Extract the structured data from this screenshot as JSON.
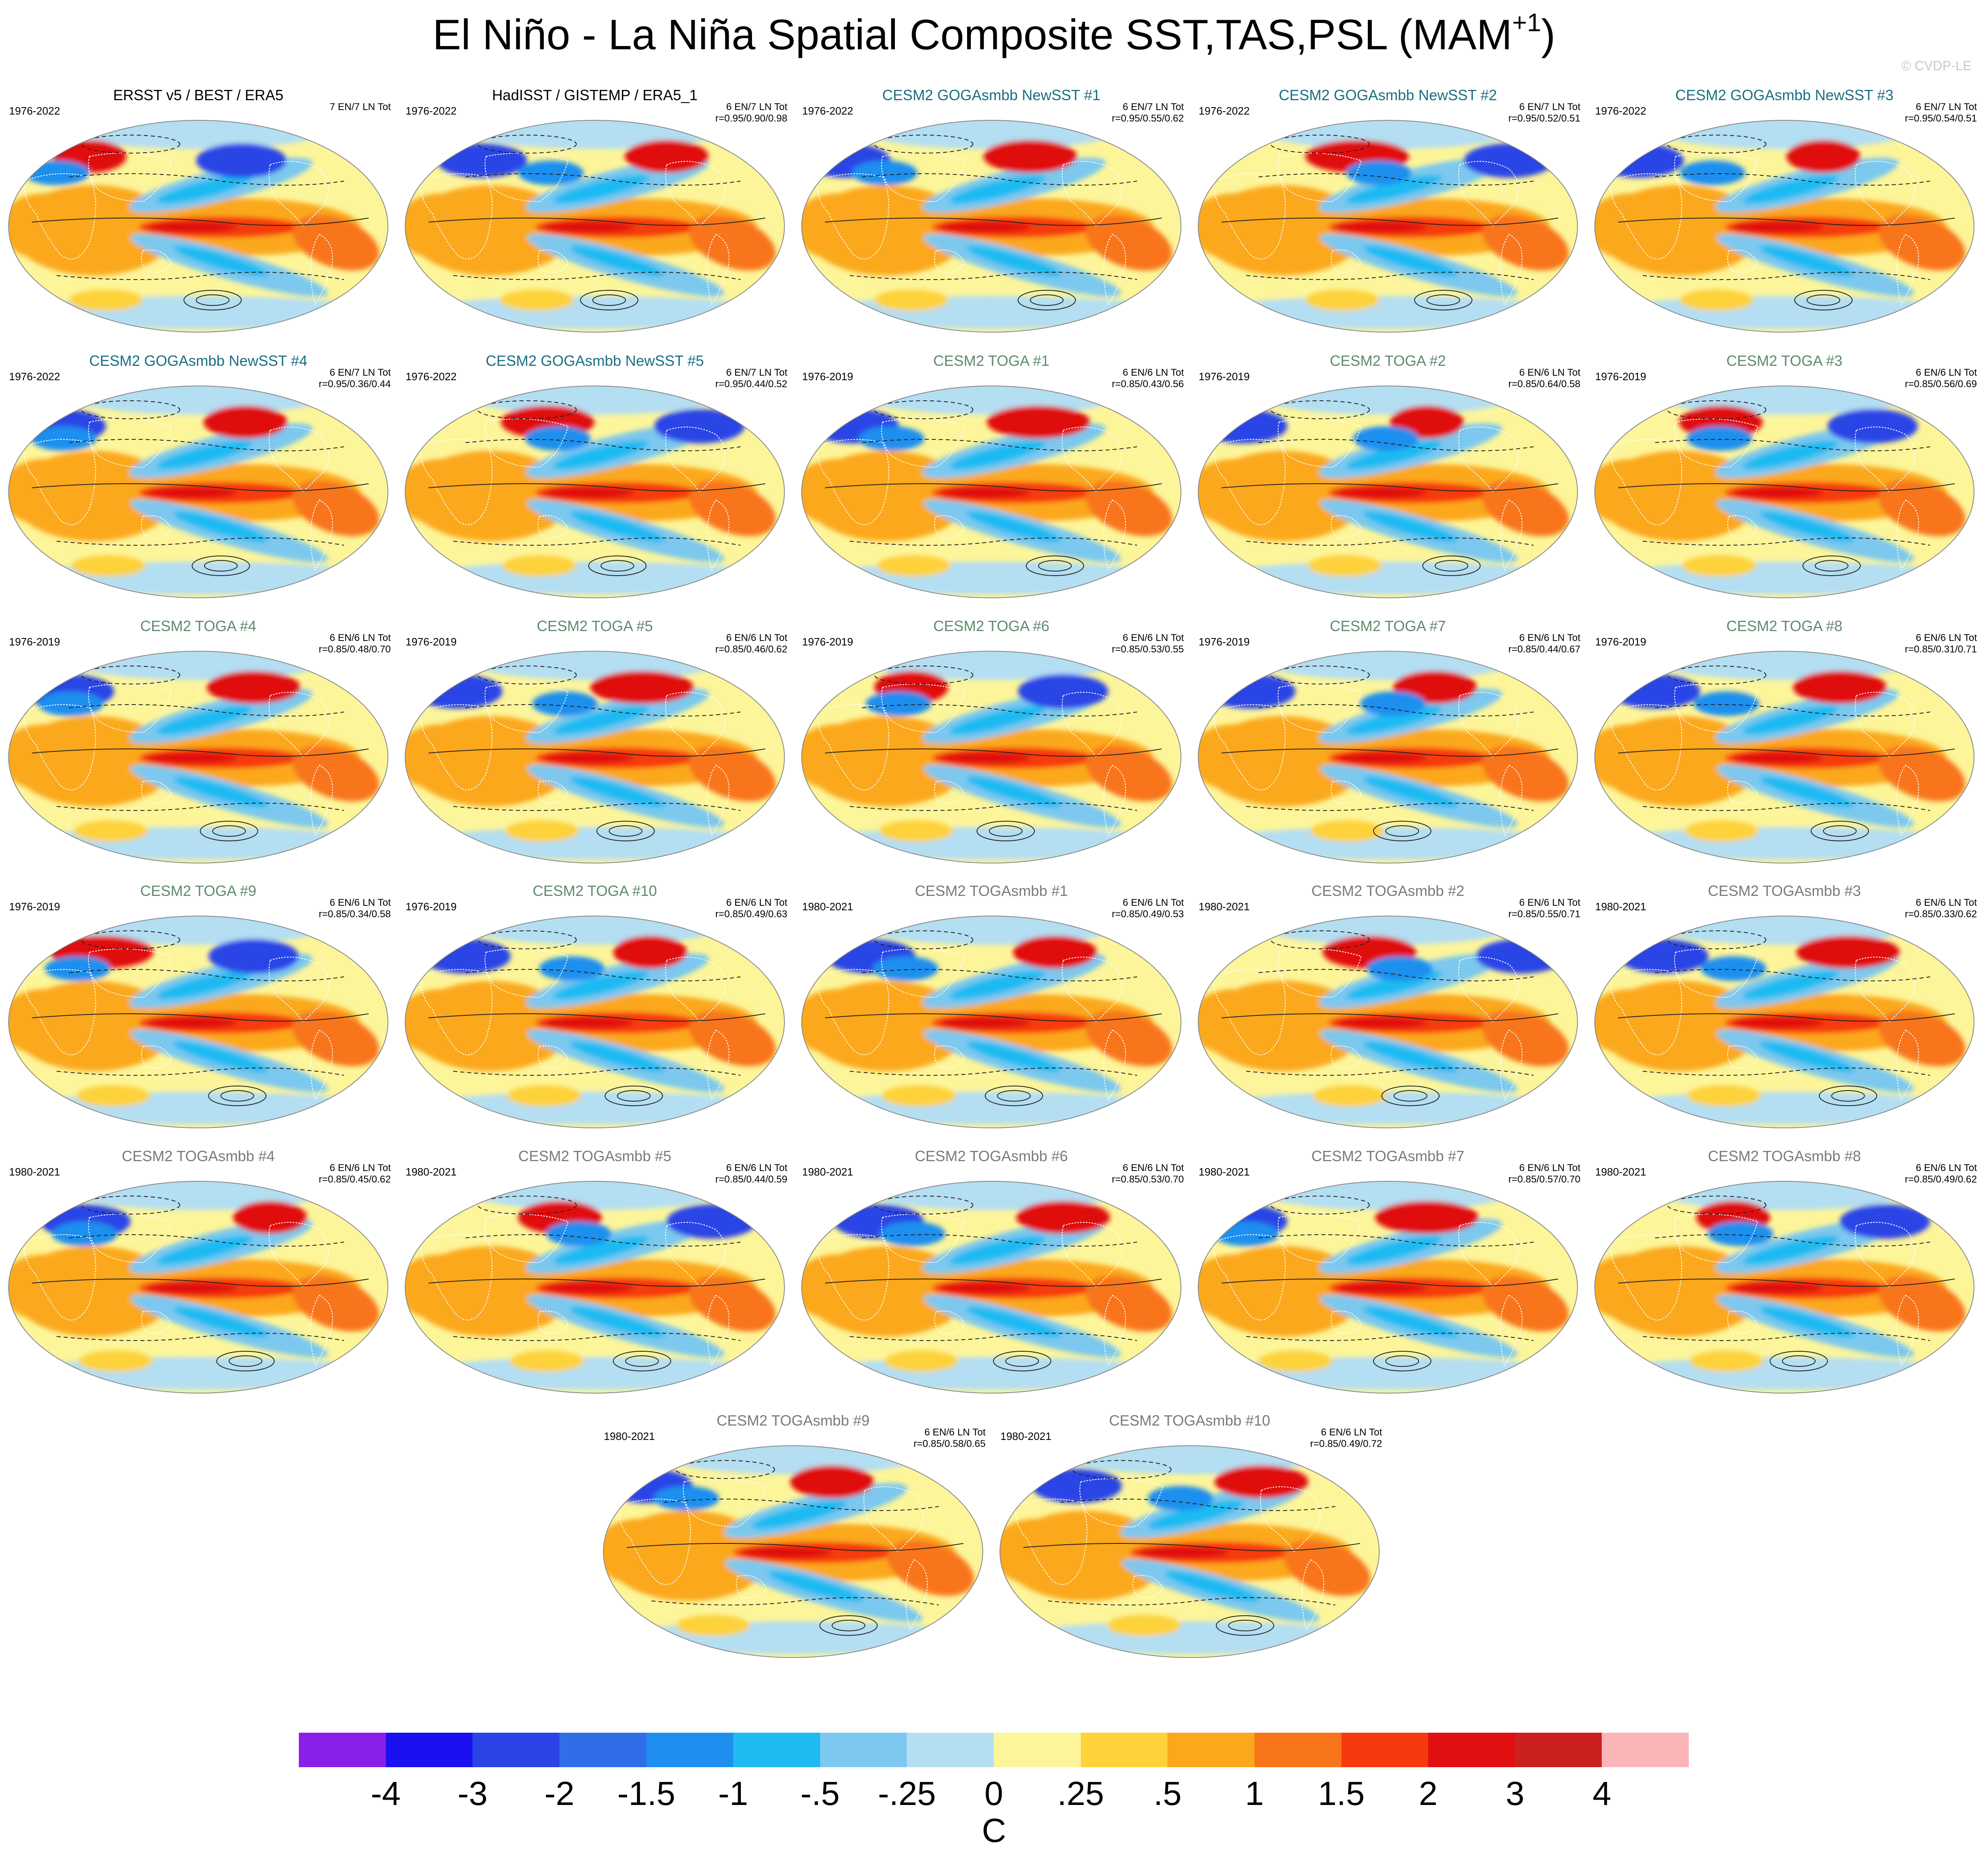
{
  "title": {
    "main": "El Niño - La Niña Spatial Composite SST,TAS,PSL (MAM",
    "superscript": "+1",
    "close": ")"
  },
  "credit": "© CVDP-LE",
  "colors": {
    "obs_title": "#000000",
    "goga_title": "#1a6e82",
    "toga_title": "#5e8a6e",
    "togasmbb_title": "#7a7a7a"
  },
  "panels": [
    {
      "title": "ERSST v5 / BEST / ERA5",
      "group": "obs",
      "years": "1976-2022",
      "count": "7 EN/7 LN Tot",
      "corr": ""
    },
    {
      "title": "HadISST / GISTEMP / ERA5_1",
      "group": "obs",
      "years": "1976-2022",
      "count": "6 EN/7 LN Tot",
      "corr": "r=0.95/0.90/0.98"
    },
    {
      "title": "CESM2 GOGAsmbb NewSST #1",
      "group": "goga",
      "years": "1976-2022",
      "count": "6 EN/7 LN Tot",
      "corr": "r=0.95/0.55/0.62"
    },
    {
      "title": "CESM2 GOGAsmbb NewSST #2",
      "group": "goga",
      "years": "1976-2022",
      "count": "6 EN/7 LN Tot",
      "corr": "r=0.95/0.52/0.51"
    },
    {
      "title": "CESM2 GOGAsmbb NewSST #3",
      "group": "goga",
      "years": "1976-2022",
      "count": "6 EN/7 LN Tot",
      "corr": "r=0.95/0.54/0.51"
    },
    {
      "title": "CESM2 GOGAsmbb NewSST #4",
      "group": "goga",
      "years": "1976-2022",
      "count": "6 EN/7 LN Tot",
      "corr": "r=0.95/0.36/0.44"
    },
    {
      "title": "CESM2 GOGAsmbb NewSST #5",
      "group": "goga",
      "years": "1976-2022",
      "count": "6 EN/7 LN Tot",
      "corr": "r=0.95/0.44/0.52"
    },
    {
      "title": "CESM2 TOGA #1",
      "group": "toga",
      "years": "1976-2019",
      "count": "6 EN/6 LN Tot",
      "corr": "r=0.85/0.43/0.56"
    },
    {
      "title": "CESM2 TOGA #2",
      "group": "toga",
      "years": "1976-2019",
      "count": "6 EN/6 LN Tot",
      "corr": "r=0.85/0.64/0.58"
    },
    {
      "title": "CESM2 TOGA #3",
      "group": "toga",
      "years": "1976-2019",
      "count": "6 EN/6 LN Tot",
      "corr": "r=0.85/0.56/0.69"
    },
    {
      "title": "CESM2 TOGA #4",
      "group": "toga",
      "years": "1976-2019",
      "count": "6 EN/6 LN Tot",
      "corr": "r=0.85/0.48/0.70"
    },
    {
      "title": "CESM2 TOGA #5",
      "group": "toga",
      "years": "1976-2019",
      "count": "6 EN/6 LN Tot",
      "corr": "r=0.85/0.46/0.62"
    },
    {
      "title": "CESM2 TOGA #6",
      "group": "toga",
      "years": "1976-2019",
      "count": "6 EN/6 LN Tot",
      "corr": "r=0.85/0.53/0.55"
    },
    {
      "title": "CESM2 TOGA #7",
      "group": "toga",
      "years": "1976-2019",
      "count": "6 EN/6 LN Tot",
      "corr": "r=0.85/0.44/0.67"
    },
    {
      "title": "CESM2 TOGA #8",
      "group": "toga",
      "years": "1976-2019",
      "count": "6 EN/6 LN Tot",
      "corr": "r=0.85/0.31/0.71"
    },
    {
      "title": "CESM2 TOGA #9",
      "group": "toga",
      "years": "1976-2019",
      "count": "6 EN/6 LN Tot",
      "corr": "r=0.85/0.34/0.58"
    },
    {
      "title": "CESM2 TOGA #10",
      "group": "toga",
      "years": "1976-2019",
      "count": "6 EN/6 LN Tot",
      "corr": "r=0.85/0.49/0.63"
    },
    {
      "title": "CESM2 TOGAsmbb #1",
      "group": "togasmbb",
      "years": "1980-2021",
      "count": "6 EN/6 LN Tot",
      "corr": "r=0.85/0.49/0.53"
    },
    {
      "title": "CESM2 TOGAsmbb #2",
      "group": "togasmbb",
      "years": "1980-2021",
      "count": "6 EN/6 LN Tot",
      "corr": "r=0.85/0.55/0.71"
    },
    {
      "title": "CESM2 TOGAsmbb #3",
      "group": "togasmbb",
      "years": "1980-2021",
      "count": "6 EN/6 LN Tot",
      "corr": "r=0.85/0.33/0.62"
    },
    {
      "title": "CESM2 TOGAsmbb #4",
      "group": "togasmbb",
      "years": "1980-2021",
      "count": "6 EN/6 LN Tot",
      "corr": "r=0.85/0.45/0.62"
    },
    {
      "title": "CESM2 TOGAsmbb #5",
      "group": "togasmbb",
      "years": "1980-2021",
      "count": "6 EN/6 LN Tot",
      "corr": "r=0.85/0.44/0.59"
    },
    {
      "title": "CESM2 TOGAsmbb #6",
      "group": "togasmbb",
      "years": "1980-2021",
      "count": "6 EN/6 LN Tot",
      "corr": "r=0.85/0.53/0.70"
    },
    {
      "title": "CESM2 TOGAsmbb #7",
      "group": "togasmbb",
      "years": "1980-2021",
      "count": "6 EN/6 LN Tot",
      "corr": "r=0.85/0.57/0.70"
    },
    {
      "title": "CESM2 TOGAsmbb #8",
      "group": "togasmbb",
      "years": "1980-2021",
      "count": "6 EN/6 LN Tot",
      "corr": "r=0.85/0.49/0.62"
    },
    {
      "title": "CESM2 TOGAsmbb #9",
      "group": "togasmbb",
      "years": "1980-2021",
      "count": "6 EN/6 LN Tot",
      "corr": "r=0.85/0.58/0.65"
    },
    {
      "title": "CESM2 TOGAsmbb #10",
      "group": "togasmbb",
      "years": "1980-2021",
      "count": "6 EN/6 LN Tot",
      "corr": "r=0.85/0.49/0.72"
    }
  ],
  "colorbar": {
    "colors": [
      "#8a1fe8",
      "#1a10f0",
      "#2a44e6",
      "#2f6ee8",
      "#1f8fef",
      "#1fbaf2",
      "#7cc8ee",
      "#b4def2",
      "#fdf59a",
      "#fdd23a",
      "#fba81c",
      "#f8741a",
      "#f63a10",
      "#e01010",
      "#cc2020",
      "#fbb4b8"
    ],
    "ticks": [
      "-4",
      "-3",
      "-2",
      "-1.5",
      "-1",
      "-.5",
      "-.25",
      "0",
      ".25",
      ".5",
      "1",
      "1.5",
      "2",
      "3",
      "4"
    ],
    "unit": "C"
  }
}
